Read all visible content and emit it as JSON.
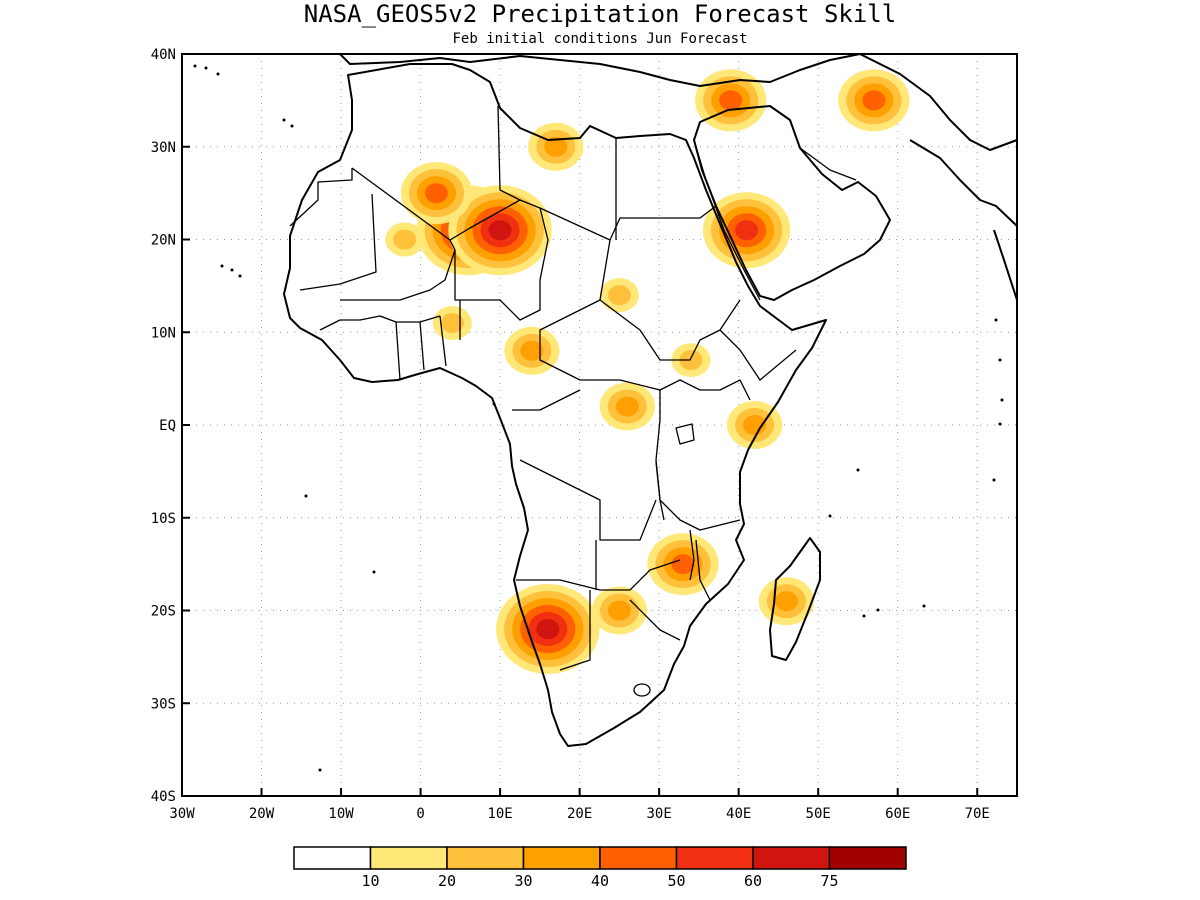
{
  "title": "NASA_GEOS5v2 Precipitation Forecast Skill",
  "subtitle": "Feb initial conditions  Jun Forecast",
  "axes": {
    "x_ticks": [
      "30W",
      "20W",
      "10W",
      "0",
      "10E",
      "20E",
      "30E",
      "40E",
      "50E",
      "60E",
      "70E"
    ],
    "y_ticks": [
      "40N",
      "30N",
      "20N",
      "10N",
      "EQ",
      "10S",
      "20S",
      "30S",
      "40S"
    ],
    "lon_range": [
      -30,
      75
    ],
    "lat_range": [
      -40,
      40
    ],
    "grid": "dotted"
  },
  "legend": {
    "position": "bottom",
    "colors": [
      "#ffffff",
      "#ffe878",
      "#ffc03c",
      "#ffa000",
      "#ff6000",
      "#f03010",
      "#d01410",
      "#a00000"
    ],
    "labels": [
      "10",
      "20",
      "30",
      "40",
      "50",
      "60",
      "75"
    ]
  },
  "chart_data": {
    "type": "heatmap",
    "title": "NASA_GEOS5v2 Precipitation Forecast Skill",
    "subtitle": "Feb initial conditions  Jun Forecast",
    "xlabel": "",
    "ylabel": "",
    "xlim": [
      -30,
      75
    ],
    "ylim": [
      -40,
      40
    ],
    "levels": [
      10,
      20,
      30,
      40,
      50,
      60,
      75
    ],
    "regions": [
      {
        "lon": 6,
        "lat": 21,
        "level": 60
      },
      {
        "lon": 10,
        "lat": 21,
        "level": 60
      },
      {
        "lon": 16,
        "lat": -22,
        "level": 60
      },
      {
        "lon": 41,
        "lat": 21,
        "level": 50
      },
      {
        "lon": 2,
        "lat": 25,
        "level": 40
      },
      {
        "lon": 39,
        "lat": 35,
        "level": 40
      },
      {
        "lon": 57,
        "lat": 35,
        "level": 40
      },
      {
        "lon": 33,
        "lat": -15,
        "level": 40
      },
      {
        "lon": 42,
        "lat": 0,
        "level": 30
      },
      {
        "lon": 26,
        "lat": 2,
        "level": 30
      },
      {
        "lon": 14,
        "lat": 8,
        "level": 30
      },
      {
        "lon": 46,
        "lat": -19,
        "level": 30
      },
      {
        "lon": 25,
        "lat": -20,
        "level": 30
      },
      {
        "lon": 17,
        "lat": 30,
        "level": 30
      },
      {
        "lon": -2,
        "lat": 20,
        "level": 20
      },
      {
        "lon": 25,
        "lat": 14,
        "level": 20
      },
      {
        "lon": 34,
        "lat": 7,
        "level": 20
      },
      {
        "lon": 4,
        "lat": 11,
        "level": 20
      }
    ]
  }
}
